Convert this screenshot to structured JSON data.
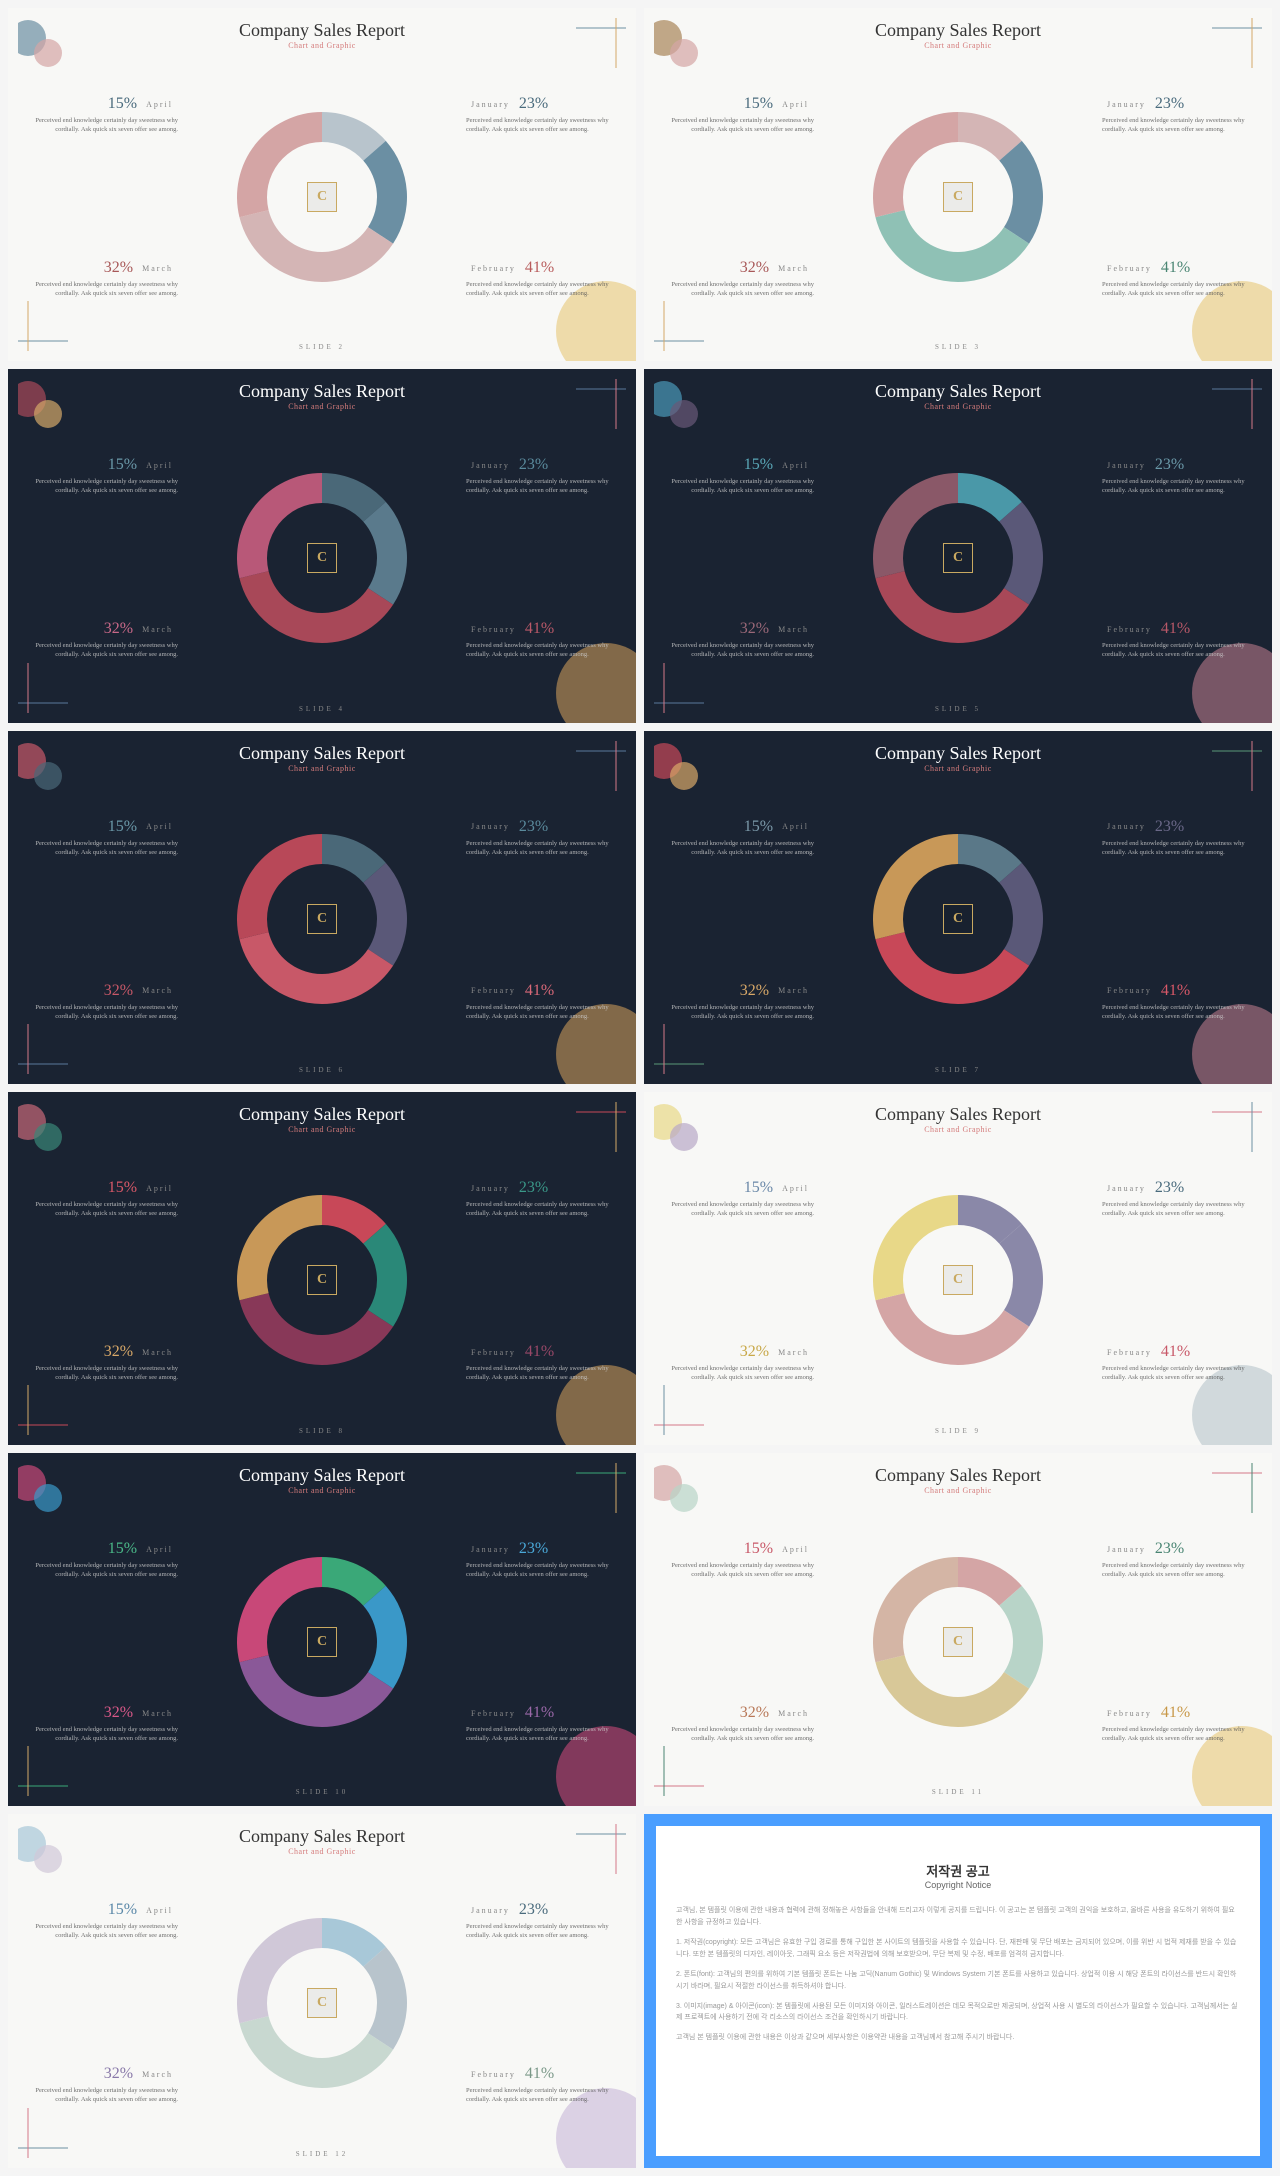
{
  "common": {
    "title": "Company Sales Report",
    "subtitle": "Chart and Graphic",
    "desc": "Perceived end knowledge certainly day sweetness why cordially. Ask quick six seven offer see among.",
    "months": {
      "jan": "January",
      "feb": "February",
      "mar": "March",
      "apr": "April"
    },
    "values": {
      "jan": 23,
      "feb": 41,
      "mar": 32,
      "apr": 15
    },
    "center_logo": "C",
    "donut_gap_deg": 0
  },
  "slides": [
    {
      "num": "SLIDE 2",
      "theme": "light",
      "subtitle_color": "#d47b7b",
      "colors": {
        "jan": "#6b8fa3",
        "feb": "#d4b5b5",
        "mar": "#d4a5a5",
        "apr": "#b8c4cc"
      },
      "pct_colors": {
        "jan": "#4a6b7d",
        "feb": "#b85c5c",
        "mar": "#a85858",
        "apr": "#4a6b7d"
      },
      "accent_tl": [
        "#6b8fa3",
        "#d4a5a5"
      ],
      "accent_br": "#e8c878",
      "accent_corner": [
        "#6b8fa3",
        "#d4a868"
      ]
    },
    {
      "num": "SLIDE 3",
      "theme": "light",
      "subtitle_color": "#d47b7b",
      "colors": {
        "jan": "#6b8fa3",
        "feb": "#8fc1b5",
        "mar": "#d4a5a5",
        "apr": "#d4b5b5"
      },
      "pct_colors": {
        "jan": "#4a6b7d",
        "feb": "#4a8573",
        "mar": "#a85858",
        "apr": "#4a6b7d"
      },
      "accent_tl": [
        "#a88558",
        "#d4a5a5"
      ],
      "accent_br": "#e8c878",
      "accent_corner": [
        "#6b8fa3",
        "#d4a868"
      ]
    },
    {
      "num": "SLIDE 4",
      "theme": "dark",
      "subtitle_color": "#d47b7b",
      "colors": {
        "jan": "#5a7a8c",
        "feb": "#a84858",
        "mar": "#b85878",
        "apr": "#4a6878"
      },
      "pct_colors": {
        "jan": "#5a8a9c",
        "feb": "#b85868",
        "mar": "#c86888",
        "apr": "#6a98a8"
      },
      "accent_tl": [
        "#a84858",
        "#d4a868"
      ],
      "accent_br": "#c89858",
      "accent_corner": [
        "#5a7a9c",
        "#d47888"
      ]
    },
    {
      "num": "SLIDE 5",
      "theme": "dark",
      "subtitle_color": "#d47b7b",
      "colors": {
        "jan": "#5a5878",
        "feb": "#a84858",
        "mar": "#8a5868",
        "apr": "#4a98a8"
      },
      "pct_colors": {
        "jan": "#6a98a8",
        "feb": "#b85868",
        "mar": "#9a6878",
        "apr": "#5aa8b8"
      },
      "accent_tl": [
        "#4a98b8",
        "#6a5878"
      ],
      "accent_br": "#b87888",
      "accent_corner": [
        "#5a7a9c",
        "#d47888"
      ]
    },
    {
      "num": "SLIDE 6",
      "theme": "dark",
      "subtitle_color": "#d47b7b",
      "colors": {
        "jan": "#5a5878",
        "feb": "#c85868",
        "mar": "#b84858",
        "apr": "#4a6878"
      },
      "pct_colors": {
        "jan": "#5a8a9c",
        "feb": "#d86878",
        "mar": "#c85868",
        "apr": "#6a98a8"
      },
      "accent_tl": [
        "#c85868",
        "#4a6878"
      ],
      "accent_br": "#c89858",
      "accent_corner": [
        "#5a7a9c",
        "#d47888"
      ]
    },
    {
      "num": "SLIDE 7",
      "theme": "dark",
      "subtitle_color": "#d47b7b",
      "colors": {
        "jan": "#5a5878",
        "feb": "#c84858",
        "mar": "#c89858",
        "apr": "#5a7888"
      },
      "pct_colors": {
        "jan": "#6a6888",
        "feb": "#d85868",
        "mar": "#d8a868",
        "apr": "#7a98a8"
      },
      "accent_tl": [
        "#c84858",
        "#d8a868"
      ],
      "accent_br": "#b87888",
      "accent_corner": [
        "#5a9878",
        "#d47888"
      ]
    },
    {
      "num": "SLIDE 8",
      "theme": "dark",
      "subtitle_color": "#d47b7b",
      "colors": {
        "jan": "#2a8878",
        "feb": "#883858",
        "mar": "#c89858",
        "apr": "#c84858"
      },
      "pct_colors": {
        "jan": "#3a9888",
        "feb": "#984868",
        "mar": "#d8a868",
        "apr": "#d85868"
      },
      "accent_tl": [
        "#c86878",
        "#3a8878"
      ],
      "accent_br": "#c89858",
      "accent_corner": [
        "#c84858",
        "#d4a868"
      ]
    },
    {
      "num": "SLIDE 9",
      "theme": "light",
      "subtitle_color": "#d47b7b",
      "colors": {
        "jan": "#8a88a8",
        "feb": "#d4a5a5",
        "mar": "#e8d888",
        "apr": "#8a88a8"
      },
      "pct_colors": {
        "jan": "#4a6b7d",
        "feb": "#c85868",
        "mar": "#c8a848",
        "apr": "#6a88a8"
      },
      "accent_tl": [
        "#e8d888",
        "#b8a8c8"
      ],
      "accent_br": "#b8c4cc",
      "accent_corner": [
        "#d47888",
        "#6b8fa3"
      ]
    },
    {
      "num": "SLIDE 10",
      "theme": "dark",
      "subtitle_color": "#d47b7b",
      "colors": {
        "jan": "#3a98c8",
        "feb": "#8a5898",
        "mar": "#c84878",
        "apr": "#3aa878"
      },
      "pct_colors": {
        "jan": "#4aa8d8",
        "feb": "#9a68a8",
        "mar": "#d85888",
        "apr": "#4ab888"
      },
      "accent_tl": [
        "#c84878",
        "#3a98c8"
      ],
      "accent_br": "#c84878",
      "accent_corner": [
        "#3aa878",
        "#d4a868"
      ]
    },
    {
      "num": "SLIDE 11",
      "theme": "light",
      "subtitle_color": "#d47b7b",
      "colors": {
        "jan": "#b8d4c8",
        "feb": "#d8c898",
        "mar": "#d4b5a5",
        "apr": "#d4a5a5"
      },
      "pct_colors": {
        "jan": "#4a8573",
        "feb": "#c89848",
        "mar": "#b87858",
        "apr": "#c85868"
      },
      "accent_tl": [
        "#d4a5a5",
        "#b8d4c8"
      ],
      "accent_br": "#e8c878",
      "accent_corner": [
        "#d47888",
        "#4a8573"
      ]
    },
    {
      "num": "SLIDE 12",
      "theme": "light",
      "subtitle_color": "#d47b7b",
      "colors": {
        "jan": "#b8c4cc",
        "feb": "#c8d8d0",
        "mar": "#d0c8d8",
        "apr": "#a8c8d8"
      },
      "pct_colors": {
        "jan": "#4a6b7d",
        "feb": "#7a9888",
        "mar": "#8878a8",
        "apr": "#5a88a8"
      },
      "accent_tl": [
        "#a8c8d8",
        "#d0c8d8"
      ],
      "accent_br": "#c8b8d8",
      "accent_corner": [
        "#6b8fa3",
        "#d47888"
      ]
    }
  ],
  "copyright": {
    "title": "저작권 공고",
    "subtitle": "Copyright Notice",
    "border_color": "#4a9eff",
    "paragraphs": [
      "고객님, 본 템플릿 이용에 관한 내용과 협력에 관해 정해놓은 사항들을 안내해 드리고자 이렇게 공지를 드립니다. 이 공고는 본 템플릿 고객의 권익을 보호하고, 올바른 사용을 유도하기 위하여 필요한 사항을 규정하고 있습니다.",
      "1. 저작권(copyright): 모든 고객님은 유효한 구입 경로를 통해 구입한 본 사이트의 템플릿을 사용할 수 있습니다. 단, 재판매 및 무단 배포는 금지되어 있으며, 이를 위반 시 법적 제재를 받을 수 있습니다. 또한 본 템플릿의 디자인, 레이아웃, 그래픽 요소 등은 저작권법에 의해 보호받으며, 무단 복제 및 수정, 배포를 엄격히 금지합니다.",
      "2. 폰트(font): 고객님의 편의를 위하여 기본 템플릿 폰트는 나눔 고딕(Nanum Gothic) 및 Windows System 기본 폰트를 사용하고 있습니다. 상업적 이용 시 해당 폰트의 라이선스를 반드시 확인하시기 바라며, 필요시 적절한 라이선스를 취득하셔야 합니다.",
      "3. 이미지(image) & 아이콘(icon): 본 템플릿에 사용된 모든 이미지와 아이콘, 일러스트레이션은 데모 목적으로만 제공되며, 상업적 사용 시 별도의 라이선스가 필요할 수 있습니다. 고객님께서는 실제 프로젝트에 사용하기 전에 각 리소스의 라이선스 조건을 확인하시기 바랍니다.",
      "고객님 본 템플릿 이용에 관한 내용은 이상과 같으며 세부사항은 이용약관 내용을 고객님께서 참고해 주시기 바랍니다."
    ]
  }
}
